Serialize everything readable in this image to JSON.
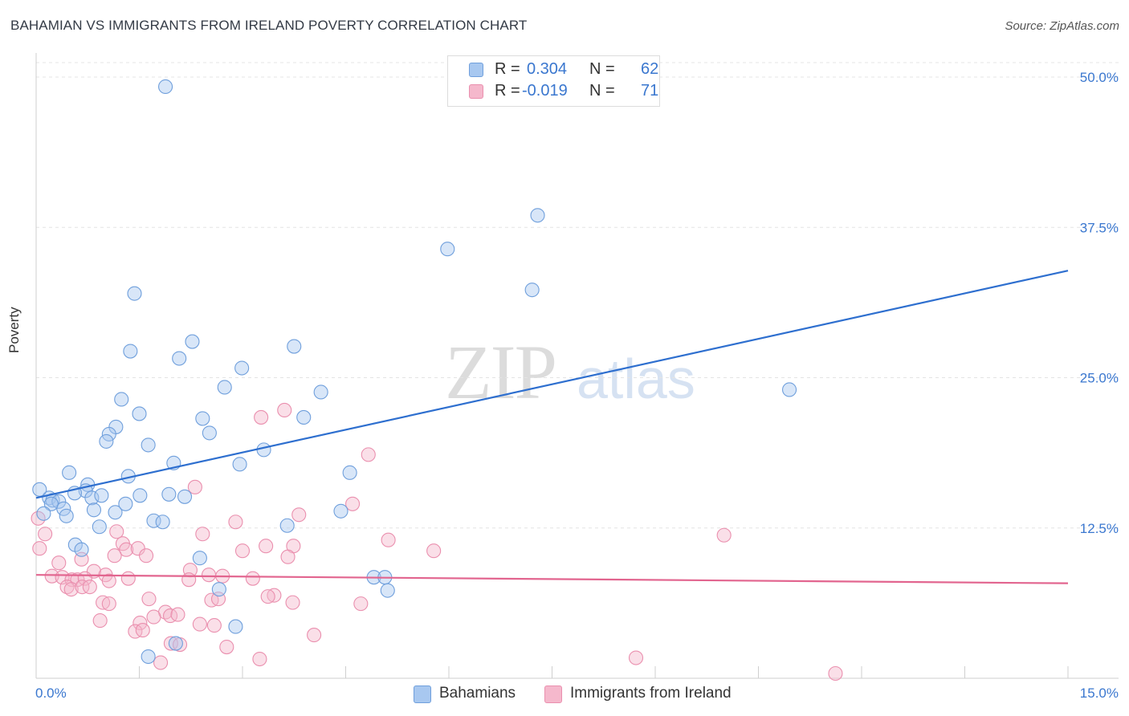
{
  "header": {
    "title": "BAHAMIAN VS IMMIGRANTS FROM IRELAND POVERTY CORRELATION CHART",
    "source": "Source: ZipAtlas.com"
  },
  "watermark": {
    "part1": "ZIP",
    "part2": "atlas"
  },
  "legend": {
    "rows": [
      {
        "r_label": "R =",
        "r_value": "0.304",
        "n_label": "N =",
        "n_value": "62",
        "color": "#a8c8f0"
      },
      {
        "r_label": "R =",
        "r_value": "-0.019",
        "n_label": "N =",
        "n_value": "71",
        "color": "#f5b8cc"
      }
    ]
  },
  "bottom_legend": {
    "bahamians": "Bahamians",
    "ireland": "Immigrants from Ireland"
  },
  "colors": {
    "blue_fill": "#a8c8f0",
    "blue_stroke": "#6f9fdc",
    "blue_line": "#2e6fcf",
    "pink_fill": "#f5b8cc",
    "pink_stroke": "#ea8fae",
    "pink_line": "#e2658f",
    "tick_label": "#3a77cf"
  },
  "chart_data": {
    "type": "scatter",
    "title": "BAHAMIAN VS IMMIGRANTS FROM IRELAND POVERTY CORRELATION CHART",
    "xlabel": "",
    "ylabel": "Poverty",
    "xlim": [
      0,
      15
    ],
    "ylim": [
      0,
      50
    ],
    "x_tick_labels": [
      "0.0%",
      "15.0%"
    ],
    "y_ticks": [
      12.5,
      25.0,
      37.5,
      50.0
    ],
    "y_tick_labels": [
      "12.5%",
      "25.0%",
      "37.5%",
      "50.0%"
    ],
    "grid": true,
    "series": [
      {
        "name": "Bahamians",
        "R": 0.304,
        "N": 62,
        "trend": {
          "x": [
            0,
            15
          ],
          "y": [
            15.0,
            33.9
          ]
        },
        "points": [
          [
            1.88,
            49.2
          ],
          [
            7.29,
            38.5
          ],
          [
            5.98,
            35.7
          ],
          [
            7.21,
            32.3
          ],
          [
            1.43,
            32.0
          ],
          [
            2.27,
            28.0
          ],
          [
            3.75,
            27.6
          ],
          [
            1.37,
            27.2
          ],
          [
            2.08,
            26.6
          ],
          [
            2.99,
            25.8
          ],
          [
            2.74,
            24.2
          ],
          [
            4.14,
            23.8
          ],
          [
            10.95,
            24.0
          ],
          [
            1.24,
            23.2
          ],
          [
            1.5,
            22.0
          ],
          [
            2.42,
            21.6
          ],
          [
            3.89,
            21.7
          ],
          [
            1.16,
            20.9
          ],
          [
            1.06,
            20.3
          ],
          [
            2.52,
            20.4
          ],
          [
            1.02,
            19.7
          ],
          [
            1.63,
            19.4
          ],
          [
            3.31,
            19.0
          ],
          [
            2.0,
            17.9
          ],
          [
            2.96,
            17.8
          ],
          [
            0.48,
            17.1
          ],
          [
            1.34,
            16.8
          ],
          [
            4.56,
            17.1
          ],
          [
            0.75,
            16.1
          ],
          [
            0.72,
            15.6
          ],
          [
            0.56,
            15.4
          ],
          [
            0.19,
            15.0
          ],
          [
            0.24,
            14.8
          ],
          [
            0.81,
            15.0
          ],
          [
            1.51,
            15.2
          ],
          [
            1.93,
            15.3
          ],
          [
            2.16,
            15.1
          ],
          [
            0.95,
            15.2
          ],
          [
            0.33,
            14.7
          ],
          [
            0.22,
            14.5
          ],
          [
            0.84,
            14.0
          ],
          [
            1.15,
            13.8
          ],
          [
            0.4,
            14.1
          ],
          [
            0.44,
            13.5
          ],
          [
            1.3,
            14.5
          ],
          [
            4.43,
            13.9
          ],
          [
            0.11,
            13.7
          ],
          [
            1.71,
            13.1
          ],
          [
            1.84,
            13.0
          ],
          [
            0.92,
            12.6
          ],
          [
            3.65,
            12.7
          ],
          [
            0.57,
            11.1
          ],
          [
            0.66,
            10.7
          ],
          [
            2.38,
            10.0
          ],
          [
            4.91,
            8.4
          ],
          [
            5.07,
            8.4
          ],
          [
            5.11,
            7.3
          ],
          [
            2.66,
            7.4
          ],
          [
            2.9,
            4.3
          ],
          [
            2.03,
            2.9
          ],
          [
            1.63,
            1.8
          ],
          [
            0.05,
            15.7
          ]
        ]
      },
      {
        "name": "Immigrants from Ireland",
        "R": -0.019,
        "N": 71,
        "trend": {
          "x": [
            0,
            15
          ],
          "y": [
            8.6,
            7.9
          ]
        },
        "points": [
          [
            3.61,
            22.3
          ],
          [
            3.27,
            21.7
          ],
          [
            4.83,
            18.6
          ],
          [
            2.31,
            15.9
          ],
          [
            4.6,
            14.5
          ],
          [
            3.82,
            13.6
          ],
          [
            2.9,
            13.0
          ],
          [
            0.13,
            12.0
          ],
          [
            1.17,
            12.2
          ],
          [
            2.42,
            12.0
          ],
          [
            5.12,
            11.5
          ],
          [
            10.0,
            11.9
          ],
          [
            1.26,
            11.2
          ],
          [
            3.34,
            11.0
          ],
          [
            3.74,
            11.0
          ],
          [
            1.31,
            10.7
          ],
          [
            1.48,
            10.8
          ],
          [
            1.14,
            10.2
          ],
          [
            3.0,
            10.6
          ],
          [
            3.66,
            10.1
          ],
          [
            5.78,
            10.6
          ],
          [
            1.6,
            10.2
          ],
          [
            0.33,
            9.6
          ],
          [
            0.66,
            9.9
          ],
          [
            2.24,
            9.0
          ],
          [
            0.84,
            8.9
          ],
          [
            1.01,
            8.6
          ],
          [
            0.23,
            8.5
          ],
          [
            0.38,
            8.4
          ],
          [
            0.52,
            8.2
          ],
          [
            0.6,
            8.2
          ],
          [
            0.71,
            8.3
          ],
          [
            1.06,
            8.1
          ],
          [
            1.34,
            8.3
          ],
          [
            2.51,
            8.6
          ],
          [
            2.71,
            8.5
          ],
          [
            3.15,
            8.3
          ],
          [
            0.45,
            7.6
          ],
          [
            0.51,
            7.4
          ],
          [
            0.67,
            7.6
          ],
          [
            0.78,
            7.6
          ],
          [
            2.22,
            8.2
          ],
          [
            0.97,
            6.3
          ],
          [
            1.06,
            6.2
          ],
          [
            1.64,
            6.6
          ],
          [
            2.55,
            6.5
          ],
          [
            2.65,
            6.6
          ],
          [
            3.46,
            6.9
          ],
          [
            3.73,
            6.3
          ],
          [
            4.72,
            6.2
          ],
          [
            3.37,
            6.8
          ],
          [
            1.88,
            5.5
          ],
          [
            1.71,
            5.1
          ],
          [
            1.95,
            5.2
          ],
          [
            2.06,
            5.3
          ],
          [
            1.51,
            4.6
          ],
          [
            0.93,
            4.8
          ],
          [
            2.38,
            4.5
          ],
          [
            2.59,
            4.4
          ],
          [
            1.44,
            3.9
          ],
          [
            1.55,
            4.0
          ],
          [
            4.04,
            3.6
          ],
          [
            1.96,
            2.9
          ],
          [
            2.09,
            2.8
          ],
          [
            2.77,
            2.6
          ],
          [
            3.25,
            1.6
          ],
          [
            8.72,
            1.7
          ],
          [
            1.81,
            1.3
          ],
          [
            11.62,
            0.4
          ],
          [
            0.03,
            13.3
          ],
          [
            0.05,
            10.8
          ]
        ]
      }
    ]
  }
}
